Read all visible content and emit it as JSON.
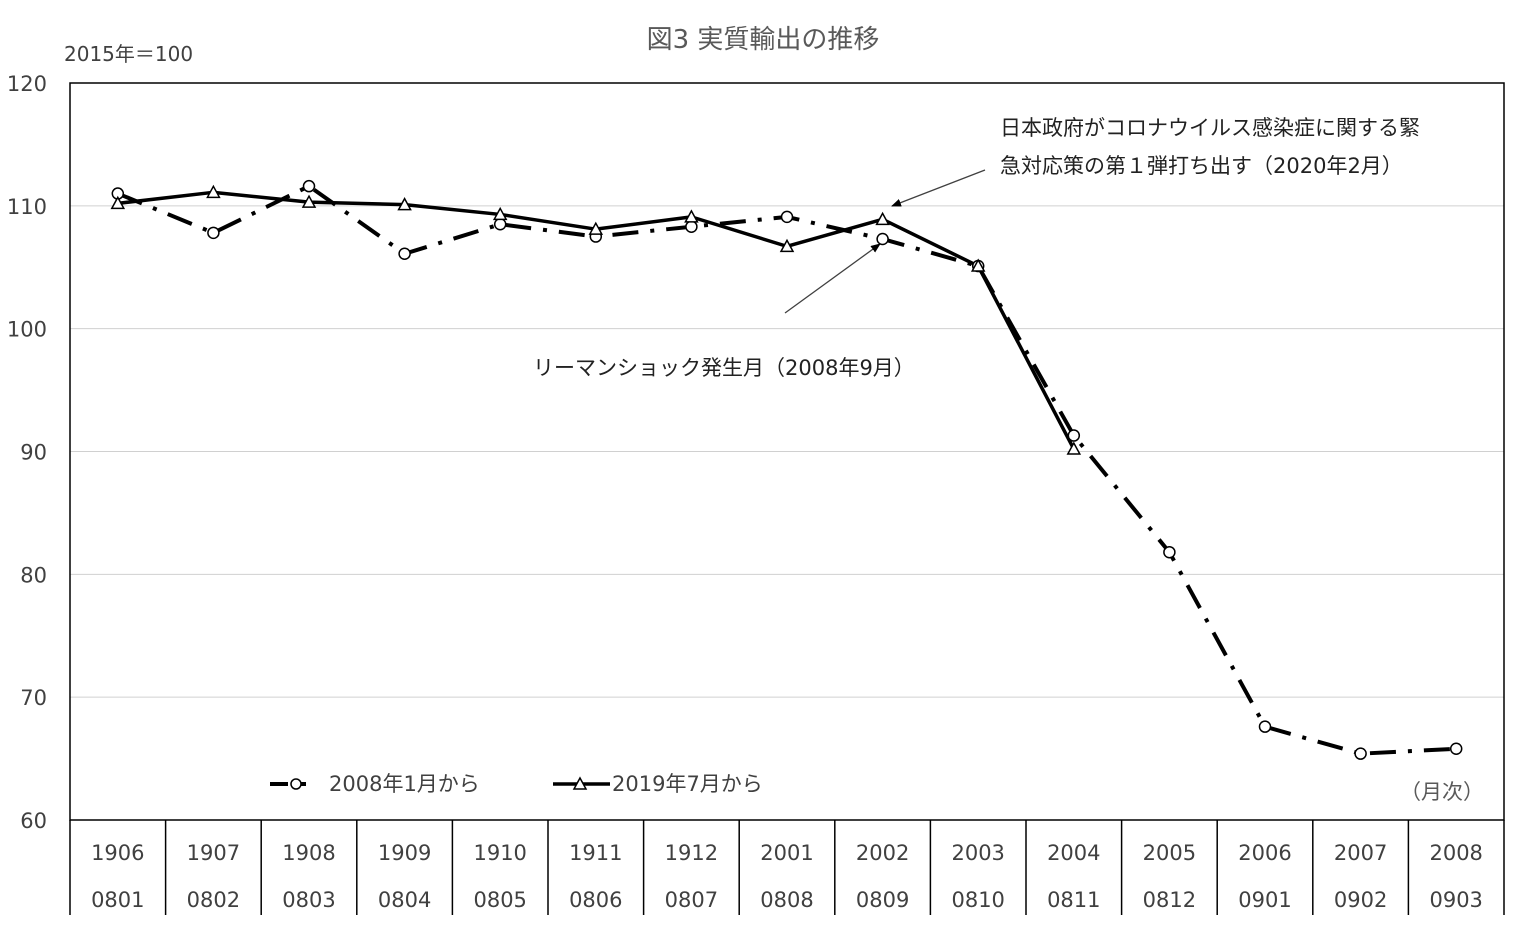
{
  "chart_data": {
    "type": "line",
    "title": "図3  実質輸出の推移",
    "unit_label": "2015年＝100",
    "x_unit_label": "（月次）",
    "ylim": [
      60,
      120
    ],
    "y_ticks": [
      "120",
      "110",
      "100",
      "90",
      "80",
      "70",
      "60"
    ],
    "grid": true,
    "legend_position": "bottom-left",
    "categories_top": [
      "1906",
      "1907",
      "1908",
      "1909",
      "1910",
      "1911",
      "1912",
      "2001",
      "2002",
      "2003",
      "2004",
      "2005",
      "2006",
      "2007",
      "2008"
    ],
    "categories_bottom": [
      "0801",
      "0802",
      "0803",
      "0804",
      "0805",
      "0806",
      "0807",
      "0808",
      "0809",
      "0810",
      "0811",
      "0812",
      "0901",
      "0902",
      "0903"
    ],
    "series": [
      {
        "name": "2008年1月から",
        "style": "dash-dot",
        "marker": "circle",
        "values": [
          111.0,
          107.8,
          111.6,
          106.1,
          108.5,
          107.5,
          108.3,
          109.1,
          107.3,
          105.1,
          91.3,
          81.8,
          67.6,
          65.4,
          65.8
        ]
      },
      {
        "name": "2019年7月から",
        "style": "solid",
        "marker": "triangle",
        "values": [
          110.2,
          111.1,
          110.3,
          110.1,
          109.3,
          108.1,
          109.1,
          106.7,
          108.9,
          105.1,
          90.2
        ]
      }
    ],
    "annotations": [
      {
        "line1": "日本政府がコロナウイルス感染症に関する緊",
        "line2": "急対応策の第１弾打ち出す（2020年2月）"
      },
      {
        "line1": "リーマンショック発生月（2008年9月）"
      }
    ]
  }
}
